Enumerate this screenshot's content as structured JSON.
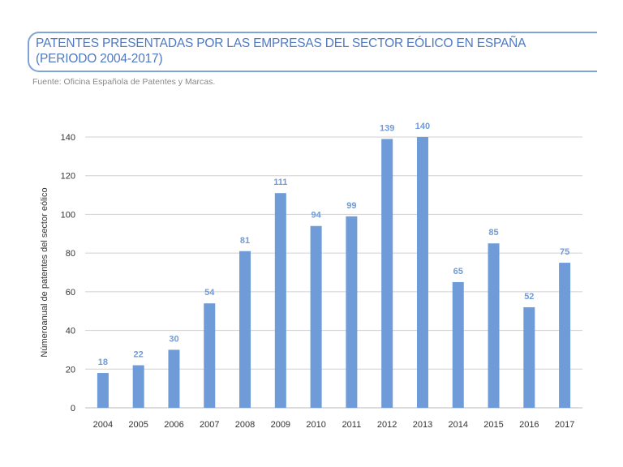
{
  "chart_data": {
    "type": "bar",
    "title_line1": "PATENTES PRESENTADAS POR LAS EMPRESAS DEL SECTOR EÓLICO EN ESPAÑA",
    "title_line2": "(PERIODO 2004-2017)",
    "source": "Fuente: Oficina Española de Patentes y Marcas.",
    "ylabel": "Númeroanual de patentes del sector eólico",
    "xlabel": "",
    "categories": [
      "2004",
      "2005",
      "2006",
      "2007",
      "2008",
      "2009",
      "2010",
      "2011",
      "2012",
      "2013",
      "2014",
      "2015",
      "2016",
      "2017"
    ],
    "values": [
      18,
      22,
      30,
      54,
      81,
      111,
      94,
      99,
      139,
      140,
      65,
      85,
      52,
      75
    ],
    "ylim": [
      0,
      140
    ],
    "yticks": [
      0,
      20,
      40,
      60,
      80,
      100,
      120,
      140
    ],
    "grid": true,
    "colors": {
      "bar": "#6f9bd8",
      "title": "#4f79c2",
      "grid": "#d0d0d0"
    }
  }
}
